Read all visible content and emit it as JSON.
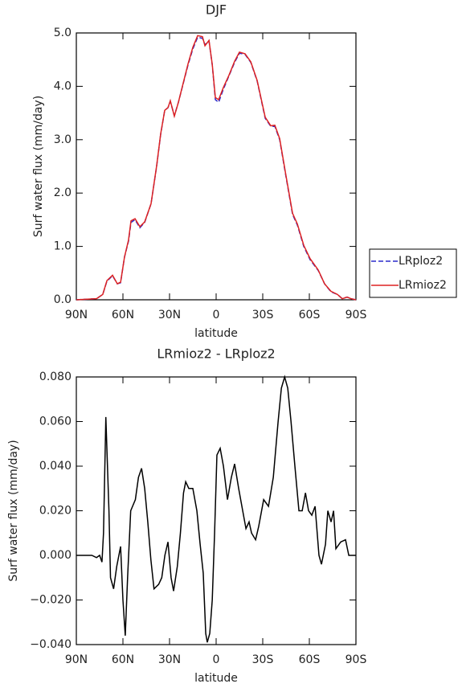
{
  "chart_data": [
    {
      "type": "line",
      "title": "DJF",
      "xlabel": "latitude",
      "ylabel": "Surf water flux (mm/day)",
      "x": [
        90,
        77,
        73,
        70.3,
        66.7,
        63.6,
        61.5,
        59,
        56.4,
        54.8,
        52.2,
        49.1,
        46,
        41.9,
        38.3,
        35.7,
        33.1,
        31,
        29.5,
        26.9,
        24.3,
        21.2,
        18.1,
        15,
        11.9,
        8.8,
        7.2,
        4.6,
        2.5,
        0.5,
        -1.6,
        -4.7,
        -8.3,
        -11.9,
        -15,
        -18.6,
        -22.3,
        -26.4,
        -31.6,
        -35.2,
        -37.8,
        -40.9,
        -45,
        -49.2,
        -52.3,
        -56.4,
        -60.5,
        -65.7,
        -69.8,
        -73.9,
        -78.1,
        -81.2,
        -84.3,
        -86.9,
        -90
      ],
      "series": [
        {
          "name": "LRploz2",
          "color": "#2a2acc",
          "dash": true,
          "values": [
            0.0,
            0.02,
            0.1,
            0.35,
            0.45,
            0.3,
            0.32,
            0.8,
            1.1,
            1.45,
            1.5,
            1.35,
            1.45,
            1.8,
            2.5,
            3.1,
            3.55,
            3.6,
            3.72,
            3.45,
            3.7,
            4.05,
            4.4,
            4.7,
            4.92,
            4.9,
            4.78,
            4.85,
            4.4,
            3.75,
            3.7,
            3.95,
            4.2,
            4.45,
            4.62,
            4.6,
            4.45,
            4.1,
            3.4,
            3.25,
            3.25,
            3.0,
            2.3,
            1.6,
            1.4,
            1.0,
            0.75,
            0.55,
            0.3,
            0.15,
            0.1,
            0.02,
            0.05,
            0.02,
            0.0
          ]
        },
        {
          "name": "LRmioz2",
          "color": "#dd2222",
          "dash": false,
          "values": [
            0.0,
            0.02,
            0.1,
            0.36,
            0.46,
            0.3,
            0.33,
            0.8,
            1.12,
            1.48,
            1.52,
            1.37,
            1.46,
            1.8,
            2.51,
            3.11,
            3.55,
            3.6,
            3.73,
            3.44,
            3.7,
            4.06,
            4.42,
            4.73,
            4.95,
            4.93,
            4.76,
            4.86,
            4.41,
            3.79,
            3.75,
            3.98,
            4.21,
            4.47,
            4.64,
            4.61,
            4.46,
            4.11,
            3.42,
            3.26,
            3.27,
            3.02,
            2.32,
            1.62,
            1.42,
            1.02,
            0.77,
            0.56,
            0.3,
            0.16,
            0.1,
            0.02,
            0.05,
            0.02,
            0.0
          ]
        }
      ],
      "xlim": [
        90,
        -90
      ],
      "xticks": [
        {
          "value": 90,
          "label": "90N"
        },
        {
          "value": 60,
          "label": "60N"
        },
        {
          "value": 30,
          "label": "30N"
        },
        0,
        {
          "value": -30,
          "label": "30S"
        },
        {
          "value": -60,
          "label": "60S"
        },
        {
          "value": -90,
          "label": "90S"
        }
      ],
      "ylim": [
        0,
        5
      ],
      "yticks": [
        {
          "value": 0,
          "label": "0.0"
        },
        {
          "value": 1,
          "label": "1.0"
        },
        {
          "value": 2,
          "label": "2.0"
        },
        {
          "value": 3,
          "label": "3.0"
        },
        {
          "value": 4,
          "label": "4.0"
        },
        {
          "value": 5,
          "label": "5.0"
        }
      ],
      "legend": "right"
    },
    {
      "type": "line",
      "title": "LRmioz2 - LRploz2",
      "xlabel": "latitude",
      "ylabel": "Surf water flux (mm/day)",
      "color": "#000000",
      "x": [
        90,
        80,
        77,
        75,
        73.5,
        72.5,
        71,
        69,
        68,
        66,
        64,
        61.5,
        60,
        58.5,
        57,
        55,
        52,
        50,
        48,
        46,
        44,
        42,
        40,
        37,
        35,
        33,
        31,
        29,
        27.4,
        25,
        23,
        21,
        19.6,
        17.6,
        15,
        12.4,
        10.3,
        8.3,
        6.7,
        5.7,
        4.1,
        2.5,
        1,
        -0.5,
        -2.6,
        -4.7,
        -7.3,
        -9.8,
        -11.9,
        -14.5,
        -17.1,
        -19.2,
        -21.2,
        -22.8,
        -25.4,
        -27.4,
        -30.6,
        -33.7,
        -36.8,
        -39.9,
        -42,
        -44.1,
        -46.1,
        -48.2,
        -50.7,
        -53.3,
        -55.4,
        -57.5,
        -59.5,
        -61.6,
        -63.7,
        -66.2,
        -67.8,
        -70.4,
        -71.9,
        -74,
        -75.6,
        -77.1,
        -80.2,
        -83.3,
        -85.4,
        -90
      ],
      "values": [
        0.0,
        0.0,
        -0.001,
        0.0,
        -0.003,
        0.01,
        0.062,
        0.02,
        -0.01,
        -0.015,
        -0.005,
        0.004,
        -0.02,
        -0.036,
        -0.01,
        0.02,
        0.025,
        0.035,
        0.039,
        0.03,
        0.015,
        -0.002,
        -0.015,
        -0.013,
        -0.01,
        0.0,
        0.006,
        -0.01,
        -0.016,
        -0.005,
        0.01,
        0.028,
        0.033,
        0.03,
        0.03,
        0.02,
        0.005,
        -0.008,
        -0.035,
        -0.039,
        -0.035,
        -0.02,
        0.01,
        0.045,
        0.048,
        0.04,
        0.025,
        0.035,
        0.041,
        0.03,
        0.02,
        0.012,
        0.015,
        0.01,
        0.007,
        0.013,
        0.025,
        0.022,
        0.035,
        0.06,
        0.075,
        0.08,
        0.075,
        0.06,
        0.04,
        0.02,
        0.02,
        0.028,
        0.02,
        0.018,
        0.022,
        0.0,
        -0.004,
        0.005,
        0.02,
        0.015,
        0.02,
        0.003,
        0.006,
        0.007,
        0.0,
        0.0
      ],
      "xlim": [
        90,
        -90
      ],
      "xticks": [
        {
          "value": 90,
          "label": "90N"
        },
        {
          "value": 60,
          "label": "60N"
        },
        {
          "value": 30,
          "label": "30N"
        },
        0,
        {
          "value": -30,
          "label": "30S"
        },
        {
          "value": -60,
          "label": "60S"
        },
        {
          "value": -90,
          "label": "90S"
        }
      ],
      "ylim": [
        -0.04,
        0.08
      ],
      "yticks": [
        {
          "value": -0.04,
          "label": "−0.040"
        },
        {
          "value": -0.02,
          "label": "−0.020"
        },
        {
          "value": 0,
          "label": "0.000"
        },
        {
          "value": 0.02,
          "label": "0.020"
        },
        {
          "value": 0.04,
          "label": "0.040"
        },
        {
          "value": 0.06,
          "label": "0.060"
        },
        {
          "value": 0.08,
          "label": "0.080"
        }
      ]
    }
  ]
}
